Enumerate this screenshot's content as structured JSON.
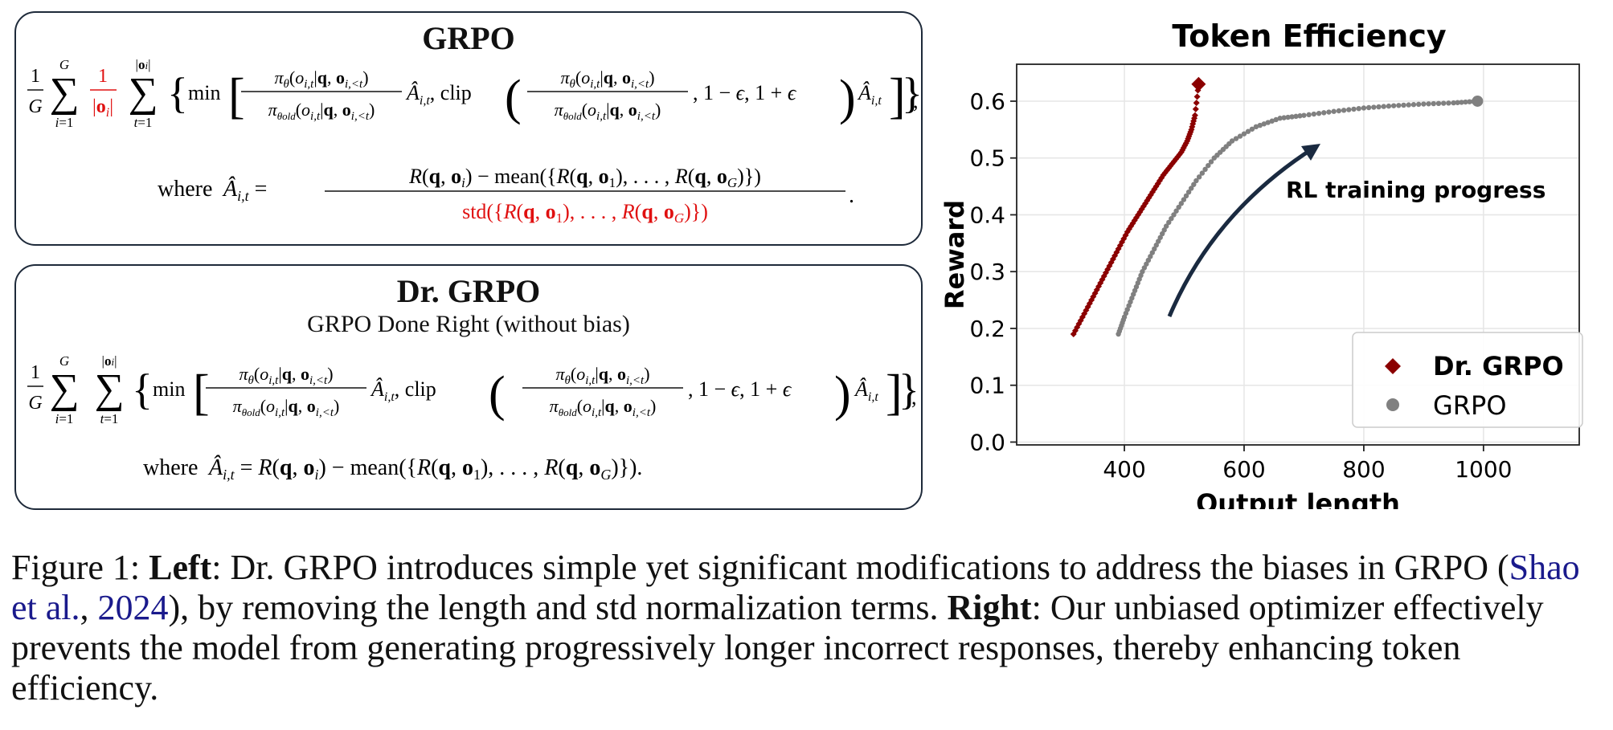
{
  "left_panel": {
    "grpo_title": "GRPO",
    "grpo_where_prefix": "where",
    "dr_title": "Dr. GRPO",
    "dr_subtitle": "GRPO Done Right (without bias)",
    "dr_where_prefix": "where"
  },
  "caption": {
    "figure_label": "Figure 1:",
    "left_label": "Left",
    "left_text_1": ": Dr. GRPO introduces simple yet significant modifications to address the biases in GRPO (",
    "citation_author": "Shao et al.",
    "citation_sep": ", ",
    "citation_year": "2024",
    "left_text_2": "), by removing the length and std normalization terms.",
    "right_label": "Right",
    "right_text": ": Our unbiased optimizer effectively prevents the model from generating progressively longer incorrect responses, thereby enhancing token efficiency."
  },
  "chart_data": {
    "type": "scatter",
    "title": "Token Efficiency",
    "xlabel": "Output length",
    "ylabel": "Reward",
    "xlim": [
      220,
      1160
    ],
    "ylim": [
      -0.005,
      0.665
    ],
    "xticks": [
      400,
      600,
      800,
      1000
    ],
    "xtick_labels": [
      "400",
      "600",
      "800",
      "1000"
    ],
    "yticks": [
      0.0,
      0.1,
      0.2,
      0.3,
      0.4,
      0.5,
      0.6
    ],
    "ytick_labels": [
      "0.0",
      "0.1",
      "0.2",
      "0.3",
      "0.4",
      "0.5",
      "0.6"
    ],
    "grid": true,
    "legend_position": "bottom-right",
    "annotation": "RL training progress",
    "series": [
      {
        "name": "Dr. GRPO",
        "marker": "diamond",
        "color": "#8b0000",
        "x": [
          315,
          330,
          345,
          360,
          375,
          390,
          405,
          420,
          435,
          450,
          465,
          480,
          495,
          505,
          512,
          518,
          524
        ],
        "y": [
          0.19,
          0.22,
          0.25,
          0.28,
          0.31,
          0.34,
          0.37,
          0.395,
          0.42,
          0.445,
          0.47,
          0.49,
          0.51,
          0.53,
          0.55,
          0.575,
          0.63
        ]
      },
      {
        "name": "GRPO",
        "marker": "circle",
        "color": "#808080",
        "x": [
          390,
          400,
          415,
          430,
          450,
          470,
          495,
          520,
          550,
          580,
          620,
          660,
          700,
          750,
          800,
          850,
          900,
          950,
          990
        ],
        "y": [
          0.19,
          0.22,
          0.26,
          0.3,
          0.34,
          0.38,
          0.42,
          0.46,
          0.5,
          0.53,
          0.555,
          0.57,
          0.575,
          0.582,
          0.588,
          0.592,
          0.595,
          0.597,
          0.6
        ]
      }
    ],
    "colors": {
      "dr_grpo": "#8b0000",
      "grpo": "#808080",
      "arrow": "#1a2a40",
      "highlight": "#e01010"
    }
  }
}
